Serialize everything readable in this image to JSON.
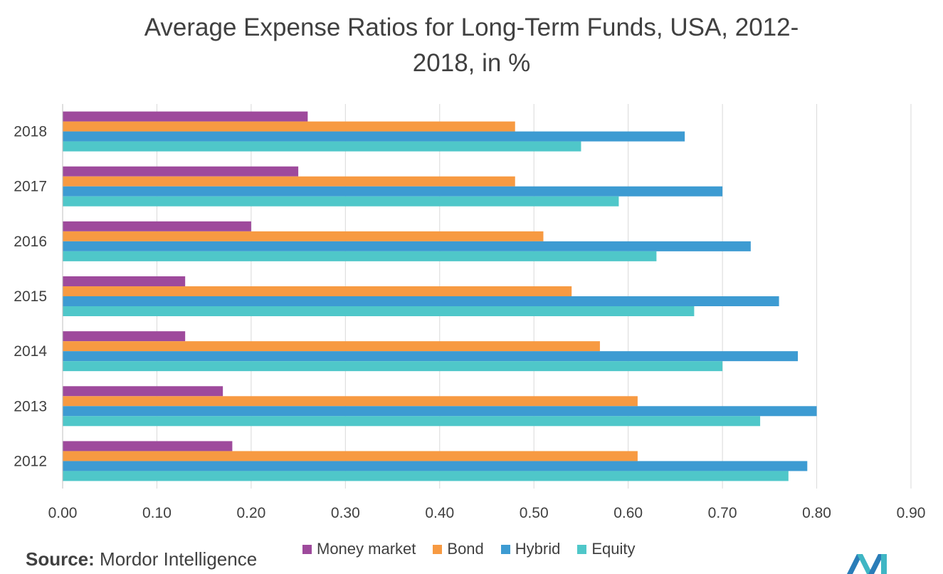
{
  "title_line1": "Average Expense Ratios for Long-Term Funds, USA, 2012-",
  "title_line2": "2018, in %",
  "source_label": "Source:",
  "source_text": "Mordor Intelligence",
  "chart_data": {
    "type": "bar",
    "orientation": "horizontal",
    "title": "Average Expense Ratios for Long-Term Funds, USA, 2012-2018, in %",
    "categories": [
      "2018",
      "2017",
      "2016",
      "2015",
      "2014",
      "2013",
      "2012"
    ],
    "series": [
      {
        "name": "Money market",
        "color": "#9e4a9c",
        "values": [
          0.26,
          0.25,
          0.2,
          0.13,
          0.13,
          0.17,
          0.18
        ]
      },
      {
        "name": "Bond",
        "color": "#f79a42",
        "values": [
          0.48,
          0.48,
          0.51,
          0.54,
          0.57,
          0.61,
          0.61
        ]
      },
      {
        "name": "Hybrid",
        "color": "#3d9bd2",
        "values": [
          0.66,
          0.7,
          0.73,
          0.76,
          0.78,
          0.8,
          0.79
        ]
      },
      {
        "name": "Equity",
        "color": "#4fc7c9",
        "values": [
          0.55,
          0.59,
          0.63,
          0.67,
          0.7,
          0.74,
          0.77
        ]
      }
    ],
    "xlim": [
      0,
      0.9
    ],
    "xticks": [
      "0.00",
      "0.10",
      "0.20",
      "0.30",
      "0.40",
      "0.50",
      "0.60",
      "0.70",
      "0.80",
      "0.90"
    ],
    "grid": true,
    "legend_position": "bottom"
  }
}
